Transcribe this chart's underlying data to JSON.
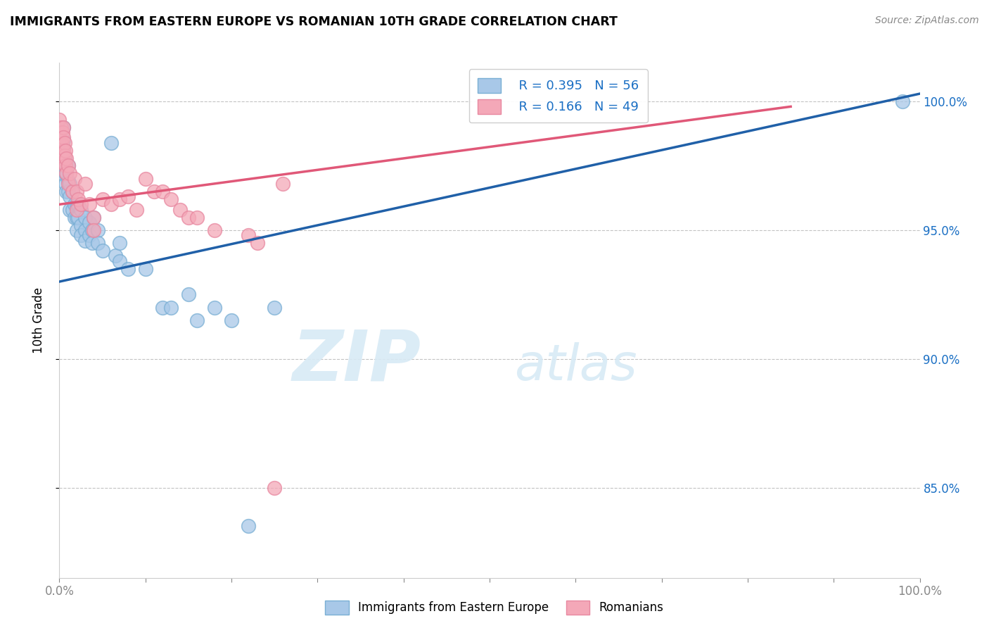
{
  "title": "IMMIGRANTS FROM EASTERN EUROPE VS ROMANIAN 10TH GRADE CORRELATION CHART",
  "source": "Source: ZipAtlas.com",
  "ylabel": "10th Grade",
  "ytick_vals": [
    1.0,
    0.95,
    0.9,
    0.85
  ],
  "ytick_labels": [
    "100.0%",
    "95.0%",
    "90.0%",
    "85.0%"
  ],
  "xlim": [
    0.0,
    1.0
  ],
  "ylim": [
    0.815,
    1.015
  ],
  "blue_R": "R = 0.395",
  "blue_N": "N = 56",
  "pink_R": "R = 0.166",
  "pink_N": "N = 49",
  "blue_color": "#a8c8e8",
  "pink_color": "#f4a8b8",
  "blue_edge_color": "#7aafd4",
  "pink_edge_color": "#e888a0",
  "blue_line_color": "#2060a8",
  "pink_line_color": "#e05878",
  "legend_text_color": "#1a6fc4",
  "watermark_color": "#d8eaf5",
  "blue_points": [
    [
      0.002,
      0.978
    ],
    [
      0.003,
      0.972
    ],
    [
      0.005,
      0.975
    ],
    [
      0.005,
      0.982
    ],
    [
      0.005,
      0.985
    ],
    [
      0.005,
      0.99
    ],
    [
      0.006,
      0.978
    ],
    [
      0.007,
      0.972
    ],
    [
      0.007,
      0.968
    ],
    [
      0.007,
      0.976
    ],
    [
      0.008,
      0.972
    ],
    [
      0.008,
      0.965
    ],
    [
      0.01,
      0.975
    ],
    [
      0.01,
      0.969
    ],
    [
      0.01,
      0.965
    ],
    [
      0.012,
      0.968
    ],
    [
      0.012,
      0.963
    ],
    [
      0.012,
      0.958
    ],
    [
      0.015,
      0.965
    ],
    [
      0.015,
      0.958
    ],
    [
      0.018,
      0.96
    ],
    [
      0.018,
      0.955
    ],
    [
      0.02,
      0.96
    ],
    [
      0.02,
      0.955
    ],
    [
      0.02,
      0.95
    ],
    [
      0.022,
      0.96
    ],
    [
      0.022,
      0.955
    ],
    [
      0.025,
      0.958
    ],
    [
      0.025,
      0.952
    ],
    [
      0.025,
      0.948
    ],
    [
      0.03,
      0.955
    ],
    [
      0.03,
      0.95
    ],
    [
      0.03,
      0.946
    ],
    [
      0.035,
      0.953
    ],
    [
      0.035,
      0.948
    ],
    [
      0.038,
      0.95
    ],
    [
      0.038,
      0.945
    ],
    [
      0.04,
      0.955
    ],
    [
      0.045,
      0.95
    ],
    [
      0.045,
      0.945
    ],
    [
      0.05,
      0.942
    ],
    [
      0.06,
      0.984
    ],
    [
      0.065,
      0.94
    ],
    [
      0.07,
      0.938
    ],
    [
      0.07,
      0.945
    ],
    [
      0.08,
      0.935
    ],
    [
      0.1,
      0.935
    ],
    [
      0.12,
      0.92
    ],
    [
      0.13,
      0.92
    ],
    [
      0.15,
      0.925
    ],
    [
      0.16,
      0.915
    ],
    [
      0.18,
      0.92
    ],
    [
      0.2,
      0.915
    ],
    [
      0.22,
      0.835
    ],
    [
      0.25,
      0.92
    ],
    [
      0.98,
      1.0
    ]
  ],
  "pink_points": [
    [
      0.0,
      0.993
    ],
    [
      0.0,
      0.988
    ],
    [
      0.0,
      0.984
    ],
    [
      0.002,
      0.99
    ],
    [
      0.002,
      0.985
    ],
    [
      0.002,
      0.981
    ],
    [
      0.004,
      0.988
    ],
    [
      0.004,
      0.983
    ],
    [
      0.004,
      0.978
    ],
    [
      0.005,
      0.99
    ],
    [
      0.005,
      0.986
    ],
    [
      0.005,
      0.981
    ],
    [
      0.005,
      0.976
    ],
    [
      0.006,
      0.984
    ],
    [
      0.006,
      0.979
    ],
    [
      0.007,
      0.981
    ],
    [
      0.007,
      0.975
    ],
    [
      0.008,
      0.978
    ],
    [
      0.008,
      0.972
    ],
    [
      0.01,
      0.975
    ],
    [
      0.01,
      0.968
    ],
    [
      0.012,
      0.972
    ],
    [
      0.015,
      0.965
    ],
    [
      0.018,
      0.97
    ],
    [
      0.02,
      0.965
    ],
    [
      0.02,
      0.958
    ],
    [
      0.022,
      0.962
    ],
    [
      0.025,
      0.96
    ],
    [
      0.03,
      0.968
    ],
    [
      0.035,
      0.96
    ],
    [
      0.04,
      0.955
    ],
    [
      0.04,
      0.95
    ],
    [
      0.05,
      0.962
    ],
    [
      0.06,
      0.96
    ],
    [
      0.07,
      0.962
    ],
    [
      0.08,
      0.963
    ],
    [
      0.09,
      0.958
    ],
    [
      0.1,
      0.97
    ],
    [
      0.11,
      0.965
    ],
    [
      0.12,
      0.965
    ],
    [
      0.13,
      0.962
    ],
    [
      0.14,
      0.958
    ],
    [
      0.15,
      0.955
    ],
    [
      0.16,
      0.955
    ],
    [
      0.18,
      0.95
    ],
    [
      0.22,
      0.948
    ],
    [
      0.23,
      0.945
    ],
    [
      0.25,
      0.85
    ],
    [
      0.26,
      0.968
    ]
  ],
  "blue_trendline_x": [
    0.0,
    1.0
  ],
  "blue_trendline_y": [
    0.93,
    1.003
  ],
  "pink_trendline_x": [
    0.0,
    0.85
  ],
  "pink_trendline_y": [
    0.96,
    0.998
  ]
}
